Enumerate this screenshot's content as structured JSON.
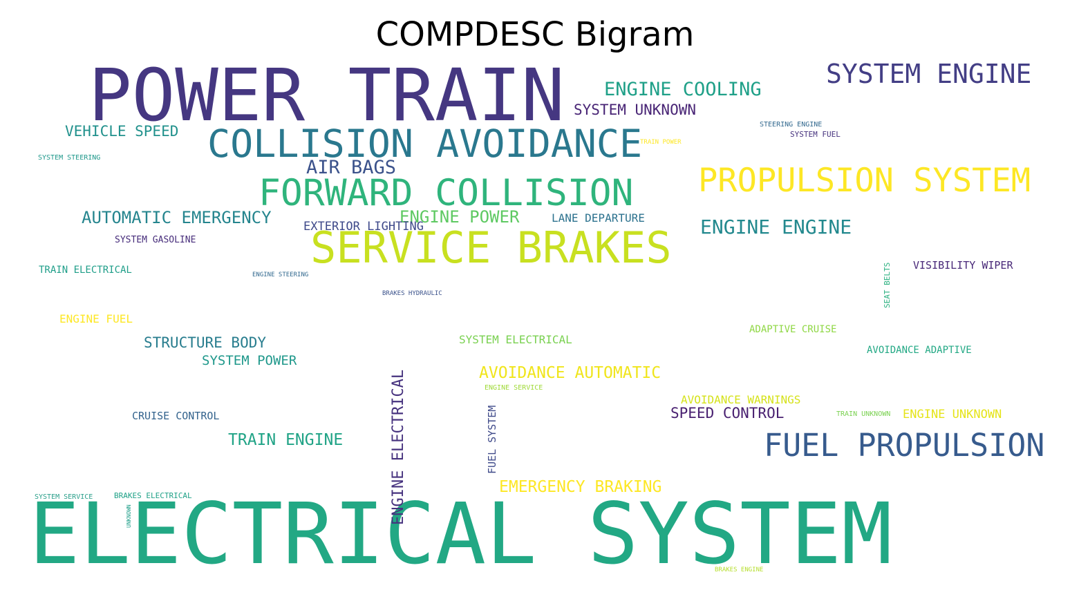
{
  "title": "COMPDESC Bigram",
  "words": [
    {
      "text": "POWER TRAIN",
      "color": "#453781"
    },
    {
      "text": "ELECTRICAL SYSTEM",
      "color": "#22a884"
    },
    {
      "text": "COLLISION AVOIDANCE",
      "color": "#2a788e"
    },
    {
      "text": "FORWARD COLLISION",
      "color": "#2fb47c"
    },
    {
      "text": "SERVICE BRAKES",
      "color": "#c8e020"
    },
    {
      "text": "PROPULSION SYSTEM",
      "color": "#fde725"
    },
    {
      "text": "FUEL PROPULSION",
      "color": "#375b8d"
    },
    {
      "text": "SYSTEM ENGINE",
      "color": "#433e85"
    },
    {
      "text": "ENGINE COOLING",
      "color": "#1fa088"
    },
    {
      "text": "SYSTEM UNKNOWN",
      "color": "#482475"
    },
    {
      "text": "VEHICLE SPEED",
      "color": "#21918c"
    },
    {
      "text": "AIR BAGS",
      "color": "#3b528b"
    },
    {
      "text": "AUTOMATIC EMERGENCY",
      "color": "#25858e"
    },
    {
      "text": "ENGINE POWER",
      "color": "#5ec962"
    },
    {
      "text": "EXTERIOR LIGHTING",
      "color": "#3e4989"
    },
    {
      "text": "LANE DEPARTURE",
      "color": "#2c728e"
    },
    {
      "text": "ENGINE ENGINE",
      "color": "#23898e"
    },
    {
      "text": "SYSTEM GASOLINE",
      "color": "#472d7b"
    },
    {
      "text": "TRAIN ELECTRICAL",
      "color": "#1f9e89"
    },
    {
      "text": "ENGINE STEERING",
      "color": "#31688e"
    },
    {
      "text": "BRAKES HYDRAULIC",
      "color": "#3b528b"
    },
    {
      "text": "SEAT BELTS",
      "color": "#2ab07f",
      "vertical": true
    },
    {
      "text": "VISIBILITY WIPER",
      "color": "#482878"
    },
    {
      "text": "ENGINE FUEL",
      "color": "#fde725"
    },
    {
      "text": "STRUCTURE BODY",
      "color": "#287d8e"
    },
    {
      "text": "SYSTEM POWER",
      "color": "#1f988b"
    },
    {
      "text": "SYSTEM ELECTRICAL",
      "color": "#7ad151"
    },
    {
      "text": "ENGINE ELECTRICAL",
      "color": "#46327e",
      "vertical": true
    },
    {
      "text": "ADAPTIVE CRUISE",
      "color": "#8fd744"
    },
    {
      "text": "AVOIDANCE ADAPTIVE",
      "color": "#22a884"
    },
    {
      "text": "AVOIDANCE AUTOMATIC",
      "color": "#f0e51c"
    },
    {
      "text": "ENGINE SERVICE",
      "color": "#a0da39"
    },
    {
      "text": "CRUISE CONTROL",
      "color": "#33638d"
    },
    {
      "text": "FUEL SYSTEM",
      "color": "#3e4989",
      "vertical": true
    },
    {
      "text": "AVOIDANCE WARNINGS",
      "color": "#d5e21a"
    },
    {
      "text": "SPEED CONTROL",
      "color": "#481f70"
    },
    {
      "text": "TRAIN UNKNOWN",
      "color": "#7ad151"
    },
    {
      "text": "ENGINE UNKNOWN",
      "color": "#e5e419"
    },
    {
      "text": "TRAIN ENGINE",
      "color": "#20a386"
    },
    {
      "text": "EMERGENCY BRAKING",
      "color": "#fde725"
    },
    {
      "text": "SYSTEM SERVICE",
      "color": "#2a9f8a"
    },
    {
      "text": "BRAKES ELECTRICAL",
      "color": "#1fa187"
    },
    {
      "text": "UNKNOWN",
      "color": "#1f9e89",
      "vertical": true
    },
    {
      "text": "BRAKES ENGINE",
      "color": "#b5de2b"
    },
    {
      "text": "STEERING ENGINE",
      "color": "#31688e"
    },
    {
      "text": "SYSTEM FUEL",
      "color": "#46327e"
    },
    {
      "text": "TRAIN POWER",
      "color": "#fde725"
    },
    {
      "text": "SYSTEM STEERING",
      "color": "#1f988b"
    }
  ]
}
